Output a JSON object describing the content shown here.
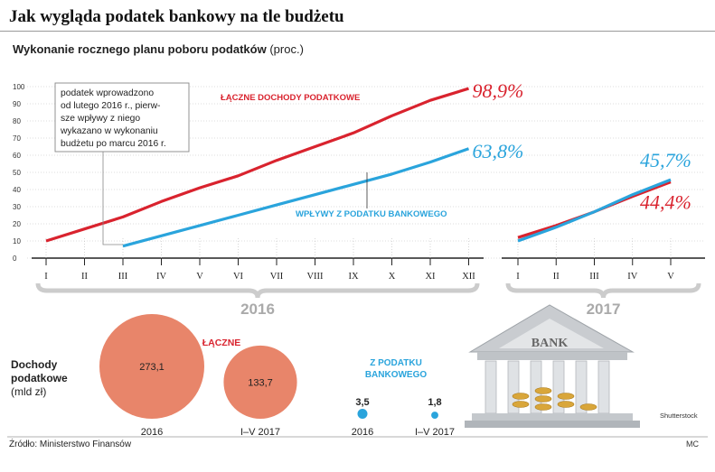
{
  "title": "Jak wygląda podatek bankowy na tle budżetu",
  "subtitle": "Wykonanie rocznego planu poboru podatków",
  "subtitle_unit": "(proc.)",
  "note": [
    "podatek wprowadzono",
    "od lutego 2016 r., pierw-",
    "sze wpływy z niego",
    "wykazano w wykonaniu",
    "budżetu po marcu 2016 r."
  ],
  "source": "Źródło: Ministerstwo Finansów",
  "credit": "MC",
  "image_credit": "Shutterstock",
  "bank_sign": "BANK",
  "colors": {
    "total": "#d9232e",
    "bank_tax": "#2aa4dc",
    "bubble": "#e8856a",
    "grey": "#ccc"
  },
  "chart_data": [
    {
      "type": "line",
      "title": "",
      "ylim": [
        0,
        100
      ],
      "yticks": [
        "0",
        "10",
        "20",
        "30",
        "40",
        "50",
        "60",
        "70",
        "80",
        "90",
        "100"
      ],
      "groups": [
        {
          "label": "2016",
          "categories": [
            "I",
            "II",
            "III",
            "IV",
            "V",
            "VI",
            "VII",
            "VIII",
            "IX",
            "X",
            "XI",
            "XII"
          ],
          "series": [
            {
              "name": "ŁĄCZNE DOCHODY PODATKOWE",
              "values": [
                10,
                17,
                24,
                33,
                41,
                48,
                57,
                65,
                73,
                83,
                92,
                98.9
              ],
              "end_label": "98,9%"
            },
            {
              "name": "WPŁYWY Z PODATKU BANKOWEGO",
              "values": [
                null,
                null,
                7,
                13,
                19,
                25,
                31,
                37,
                43,
                49,
                56,
                63.8
              ],
              "end_label": "63,8%"
            }
          ]
        },
        {
          "label": "2017",
          "categories": [
            "I",
            "II",
            "III",
            "IV",
            "V"
          ],
          "series": [
            {
              "name": "ŁĄCZNE DOCHODY PODATKOWE",
              "values": [
                12,
                19,
                27,
                36,
                44.4
              ],
              "end_label": "44,4%"
            },
            {
              "name": "WPŁYWY Z PODATKU BANKOWEGO",
              "values": [
                10,
                18,
                27,
                37,
                45.7
              ],
              "end_label": "45,7%"
            }
          ]
        }
      ]
    },
    {
      "type": "bubble",
      "ylabel": [
        "Dochody",
        "podatkowe",
        "(mld zł)"
      ],
      "groups": [
        {
          "name": "ŁĄCZNE",
          "points": [
            {
              "x": "2016",
              "value": "273,1"
            },
            {
              "x": "I–V 2017",
              "value": "133,7"
            }
          ]
        },
        {
          "name": "Z PODATKU BANKOWEGO",
          "points": [
            {
              "x": "2016",
              "value": "3,5"
            },
            {
              "x": "I–V 2017",
              "value": "1,8"
            }
          ]
        }
      ]
    }
  ]
}
